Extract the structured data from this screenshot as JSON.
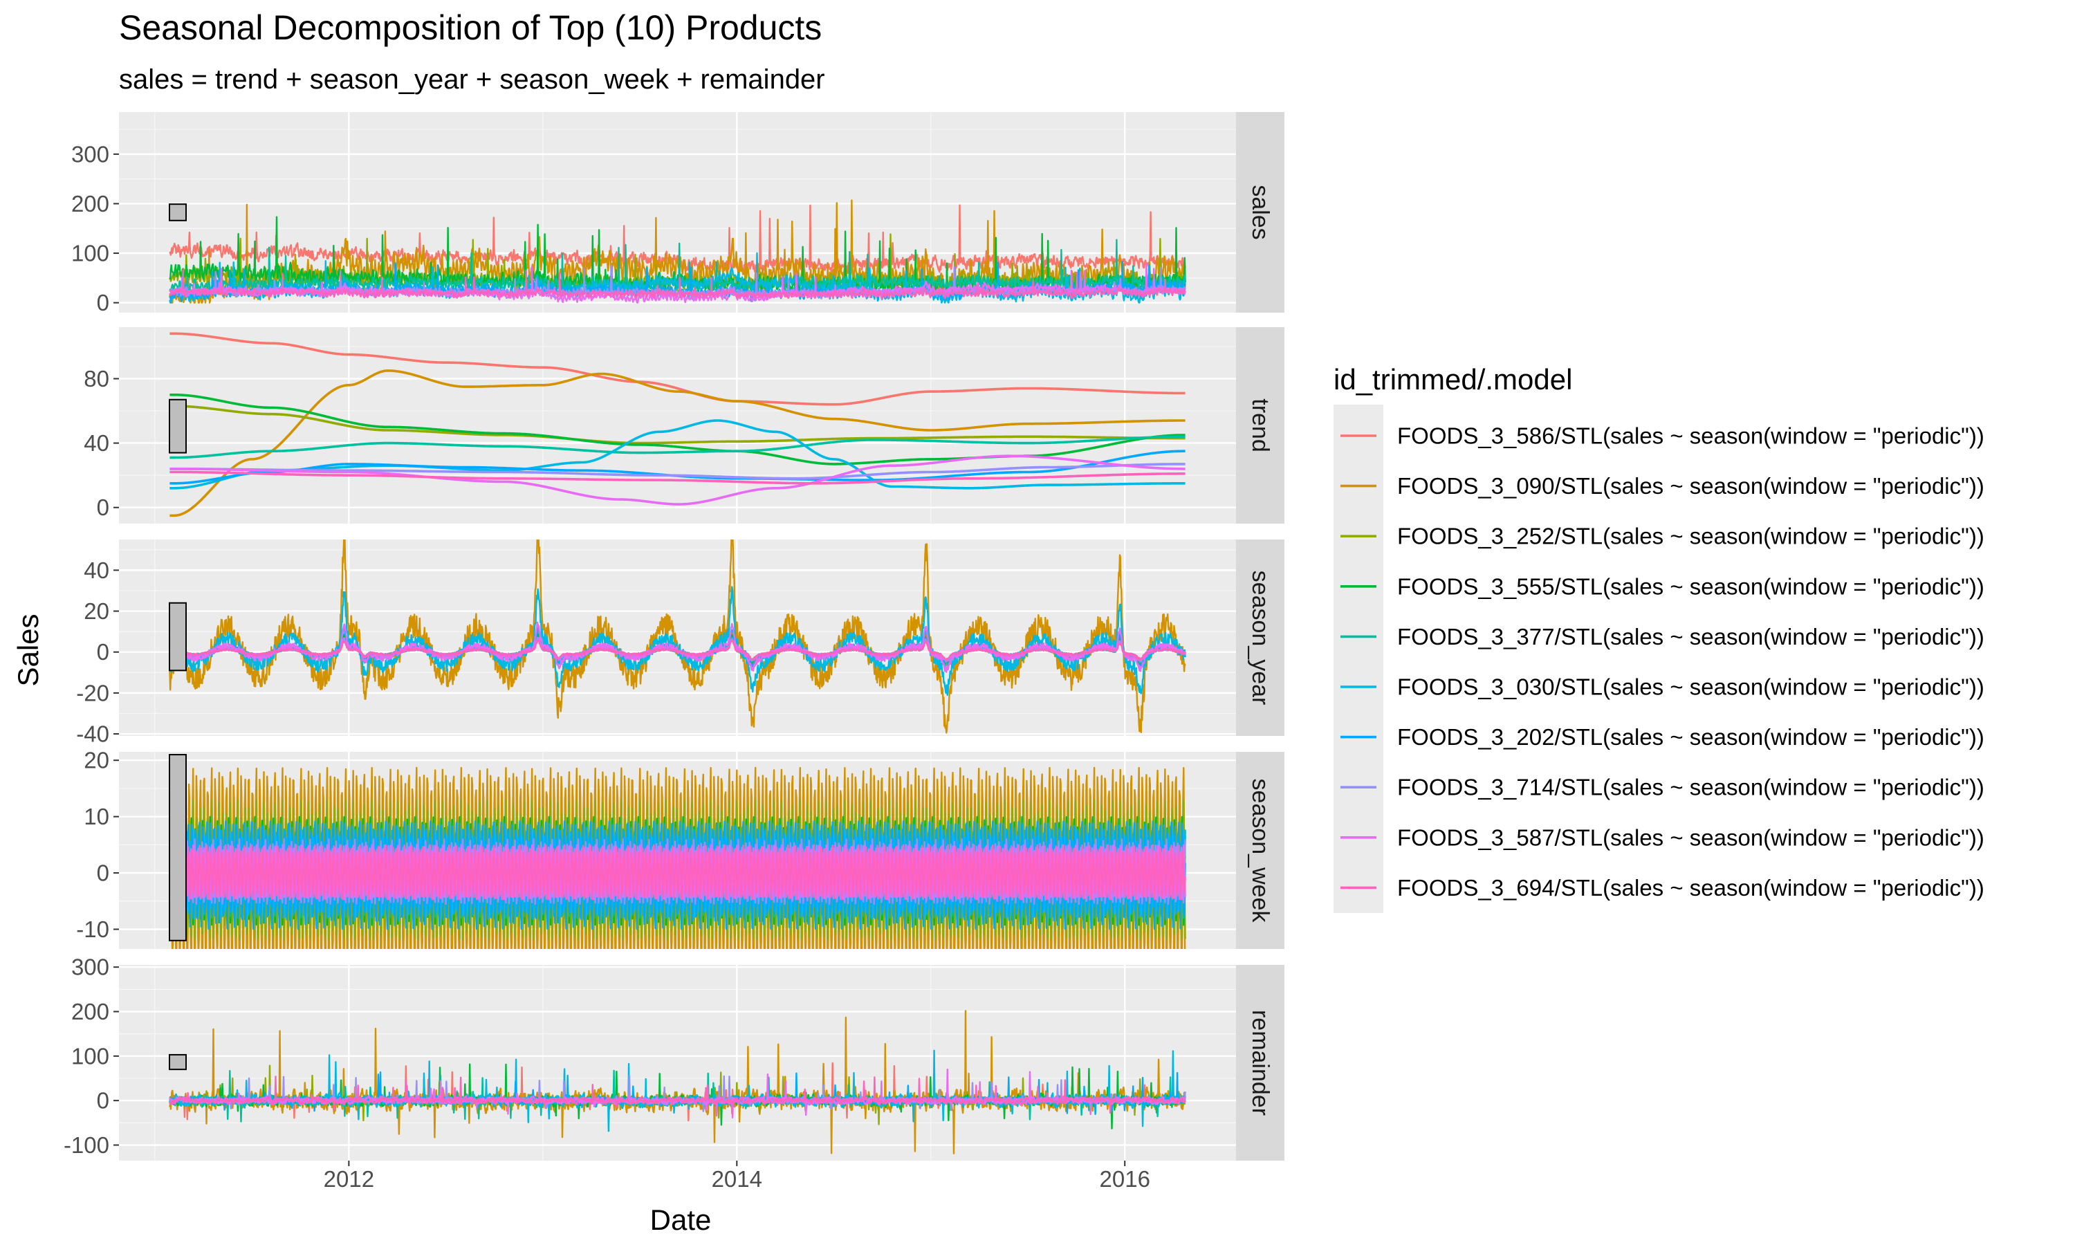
{
  "chart_data": {
    "type": "line",
    "title": "Seasonal Decomposition of Top (10) Products",
    "subtitle": "sales = trend + season_year + season_week + remainder",
    "xlabel": "Date",
    "ylabel": "Sales",
    "x_range": [
      "2011-01-29",
      "2016-04-24"
    ],
    "x_ticks": [
      "2012",
      "2014",
      "2016"
    ],
    "grid": true,
    "legend_title": "id_trimmed/.model",
    "legend_position": "right",
    "series": [
      {
        "name": "FOODS_3_586/STL(sales ~ season(window = \"periodic\"))",
        "color": "#F8766D",
        "sales_level": 105,
        "sales_noise": 20,
        "trend_points": [
          [
            2011.1,
            108
          ],
          [
            2011.6,
            102
          ],
          [
            2012.0,
            95
          ],
          [
            2012.5,
            90
          ],
          [
            2013.0,
            87
          ],
          [
            2013.5,
            78
          ],
          [
            2014.0,
            66
          ],
          [
            2014.5,
            64
          ],
          [
            2015.0,
            72
          ],
          [
            2015.5,
            74
          ],
          [
            2016.3,
            71
          ]
        ],
        "season_year_amp": 6,
        "season_week_amp": 3,
        "remainder_noise": 10
      },
      {
        "name": "FOODS_3_090/STL(sales ~ season(window = \"periodic\"))",
        "color": "#D39200",
        "sales_level": 55,
        "sales_noise": 30,
        "trend_points": [
          [
            2011.1,
            -5
          ],
          [
            2011.5,
            30
          ],
          [
            2012.0,
            76
          ],
          [
            2012.2,
            85
          ],
          [
            2012.6,
            75
          ],
          [
            2013.0,
            76
          ],
          [
            2013.3,
            83
          ],
          [
            2013.7,
            72
          ],
          [
            2014.0,
            66
          ],
          [
            2014.5,
            55
          ],
          [
            2015.0,
            48
          ],
          [
            2015.5,
            52
          ],
          [
            2016.3,
            54
          ]
        ],
        "season_year_amp": 50,
        "season_week_amp": 20,
        "remainder_noise": 25
      },
      {
        "name": "FOODS_3_252/STL(sales ~ season(window = \"periodic\"))",
        "color": "#93AA00",
        "sales_level": 45,
        "sales_noise": 15,
        "trend_points": [
          [
            2011.1,
            63
          ],
          [
            2011.6,
            58
          ],
          [
            2012.2,
            48
          ],
          [
            2012.8,
            45
          ],
          [
            2013.5,
            40
          ],
          [
            2014.0,
            41
          ],
          [
            2014.7,
            43
          ],
          [
            2015.5,
            44
          ],
          [
            2016.3,
            43
          ]
        ],
        "season_year_amp": 8,
        "season_week_amp": 13,
        "remainder_noise": 10
      },
      {
        "name": "FOODS_3_555/STL(sales ~ season(window = \"periodic\"))",
        "color": "#00BA38",
        "sales_level": 50,
        "sales_noise": 18,
        "trend_points": [
          [
            2011.1,
            70
          ],
          [
            2011.6,
            62
          ],
          [
            2012.2,
            50
          ],
          [
            2012.8,
            46
          ],
          [
            2013.5,
            39
          ],
          [
            2014.0,
            35
          ],
          [
            2014.5,
            27
          ],
          [
            2015.0,
            30
          ],
          [
            2015.5,
            32
          ],
          [
            2016.3,
            45
          ]
        ],
        "season_year_amp": 7,
        "season_week_amp": 10,
        "remainder_noise": 12
      },
      {
        "name": "FOODS_3_377/STL(sales ~ season(window = \"periodic\"))",
        "color": "#00C19F",
        "sales_level": 40,
        "sales_noise": 14,
        "trend_points": [
          [
            2011.1,
            31
          ],
          [
            2011.6,
            35
          ],
          [
            2012.2,
            40
          ],
          [
            2012.8,
            38
          ],
          [
            2013.5,
            34
          ],
          [
            2014.0,
            35
          ],
          [
            2014.7,
            42
          ],
          [
            2015.5,
            40
          ],
          [
            2016.3,
            44
          ]
        ],
        "season_year_amp": 6,
        "season_week_amp": 8,
        "remainder_noise": 9
      },
      {
        "name": "FOODS_3_030/STL(sales ~ season(window = \"periodic\"))",
        "color": "#00B9E3",
        "sales_level": 28,
        "sales_noise": 12,
        "trend_points": [
          [
            2011.1,
            12
          ],
          [
            2011.6,
            23
          ],
          [
            2012.2,
            26
          ],
          [
            2012.8,
            23
          ],
          [
            2013.2,
            28
          ],
          [
            2013.6,
            47
          ],
          [
            2013.9,
            54
          ],
          [
            2014.2,
            47
          ],
          [
            2014.5,
            30
          ],
          [
            2014.8,
            13
          ],
          [
            2015.2,
            12
          ],
          [
            2015.6,
            14
          ],
          [
            2016.3,
            15
          ]
        ],
        "season_year_amp": 26,
        "season_week_amp": 8,
        "remainder_noise": 14
      },
      {
        "name": "FOODS_3_202/STL(sales ~ season(window = \"periodic\"))",
        "color": "#00A9FF",
        "sales_level": 25,
        "sales_noise": 10,
        "trend_points": [
          [
            2011.1,
            15
          ],
          [
            2011.6,
            22
          ],
          [
            2012.0,
            27
          ],
          [
            2012.6,
            25
          ],
          [
            2013.2,
            23
          ],
          [
            2014.0,
            18
          ],
          [
            2014.7,
            17
          ],
          [
            2015.5,
            22
          ],
          [
            2016.3,
            35
          ]
        ],
        "season_year_amp": 10,
        "season_week_amp": 10,
        "remainder_noise": 8
      },
      {
        "name": "FOODS_3_714/STL(sales ~ season(window = \"periodic\"))",
        "color": "#9590FF",
        "sales_level": 22,
        "sales_noise": 9,
        "trend_points": [
          [
            2011.1,
            24
          ],
          [
            2012.0,
            23
          ],
          [
            2012.8,
            22
          ],
          [
            2013.6,
            20
          ],
          [
            2014.3,
            18
          ],
          [
            2015.0,
            22
          ],
          [
            2015.6,
            25
          ],
          [
            2016.3,
            27
          ]
        ],
        "season_year_amp": 6,
        "season_week_amp": 6,
        "remainder_noise": 7
      },
      {
        "name": "FOODS_3_587/STL(sales ~ season(window = \"periodic\"))",
        "color": "#E76BF3",
        "sales_level": 22,
        "sales_noise": 9,
        "trend_points": [
          [
            2011.1,
            24
          ],
          [
            2012.0,
            22
          ],
          [
            2012.8,
            16
          ],
          [
            2013.4,
            5
          ],
          [
            2013.7,
            2
          ],
          [
            2014.2,
            12
          ],
          [
            2014.8,
            26
          ],
          [
            2015.4,
            32
          ],
          [
            2016.3,
            24
          ]
        ],
        "season_year_amp": 12,
        "season_week_amp": 5,
        "remainder_noise": 8
      },
      {
        "name": "FOODS_3_694/STL(sales ~ season(window = \"periodic\"))",
        "color": "#FF62BC",
        "sales_level": 20,
        "sales_noise": 8,
        "trend_points": [
          [
            2011.1,
            22
          ],
          [
            2012.0,
            20
          ],
          [
            2012.8,
            18
          ],
          [
            2013.6,
            17
          ],
          [
            2014.4,
            15
          ],
          [
            2015.2,
            18
          ],
          [
            2016.3,
            21
          ]
        ],
        "season_year_amp": 5,
        "season_week_amp": 5,
        "remainder_noise": 7
      }
    ],
    "panels": [
      {
        "label": "sales",
        "ylim": [
          -20,
          385
        ],
        "ticks": [
          0,
          100,
          200,
          300
        ],
        "range_bar": [
          166,
          199
        ]
      },
      {
        "label": "trend",
        "ylim": [
          -10,
          112
        ],
        "ticks": [
          0,
          40,
          80
        ],
        "range_bar": [
          34,
          67
        ]
      },
      {
        "label": "season_year",
        "ylim": [
          -41,
          55
        ],
        "ticks": [
          -40,
          -20,
          0,
          20,
          40
        ],
        "range_bar": [
          -9,
          24
        ]
      },
      {
        "label": "season_week",
        "ylim": [
          -13.5,
          21.5
        ],
        "ticks": [
          -10,
          0,
          10,
          20
        ],
        "range_bar": [
          -12,
          21
        ]
      },
      {
        "label": "remainder",
        "ylim": [
          -135,
          305
        ],
        "ticks": [
          -100,
          0,
          100,
          200,
          300
        ],
        "range_bar": [
          70,
          103
        ]
      }
    ]
  }
}
